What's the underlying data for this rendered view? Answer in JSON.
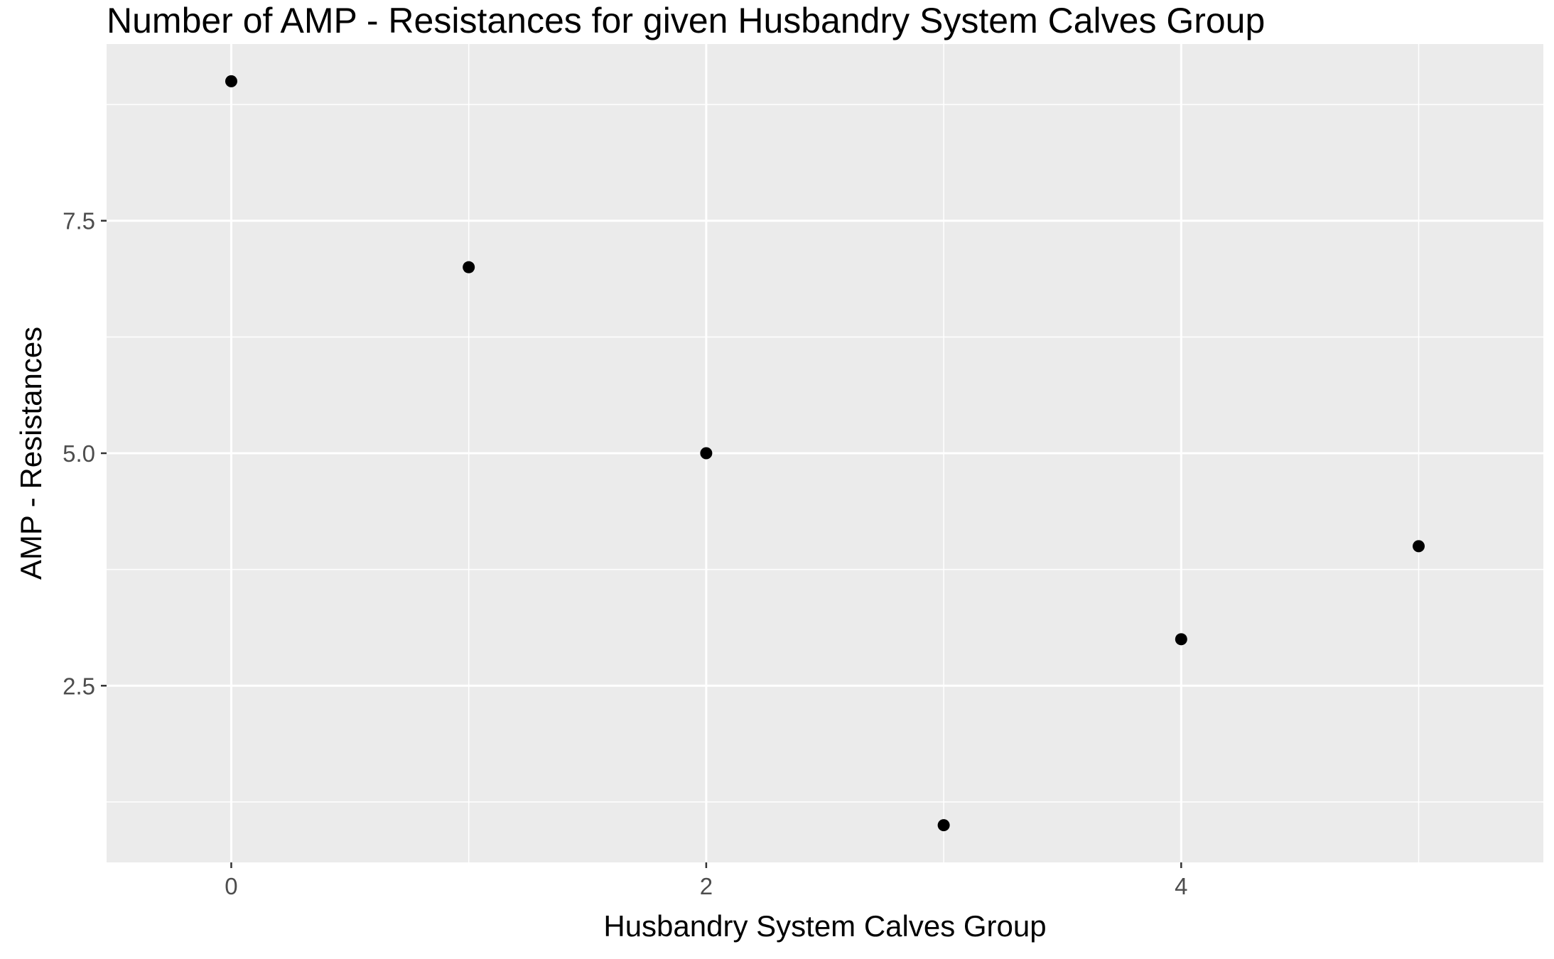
{
  "chart_data": {
    "type": "scatter",
    "title": "Number of AMP - Resistances for given Husbandry System Calves Group",
    "xlabel": "Husbandry System Calves Group",
    "ylabel": "AMP - Resistances",
    "x": [
      0,
      1,
      2,
      3,
      4,
      5
    ],
    "y": [
      9,
      7,
      5,
      1,
      3,
      4
    ],
    "xlim": [
      -0.525,
      5.525
    ],
    "ylim": [
      0.6,
      9.4
    ],
    "x_ticks": [
      0,
      2,
      4
    ],
    "x_tick_labels": [
      "0",
      "2",
      "4"
    ],
    "x_minor_ticks": [
      1,
      3,
      5
    ],
    "y_ticks": [
      2.5,
      5.0,
      7.5
    ],
    "y_tick_labels": [
      "2.5",
      "5.0",
      "7.5"
    ],
    "y_minor_ticks": [
      1.25,
      3.75,
      6.25,
      8.75
    ],
    "grid": true,
    "legend": "none",
    "colors": {
      "panel_background": "#EBEBEB",
      "grid_line": "#FFFFFF",
      "point": "#000000",
      "tick_label": "#4D4D4D",
      "tick_mark": "#333333",
      "text": "#000000"
    }
  }
}
